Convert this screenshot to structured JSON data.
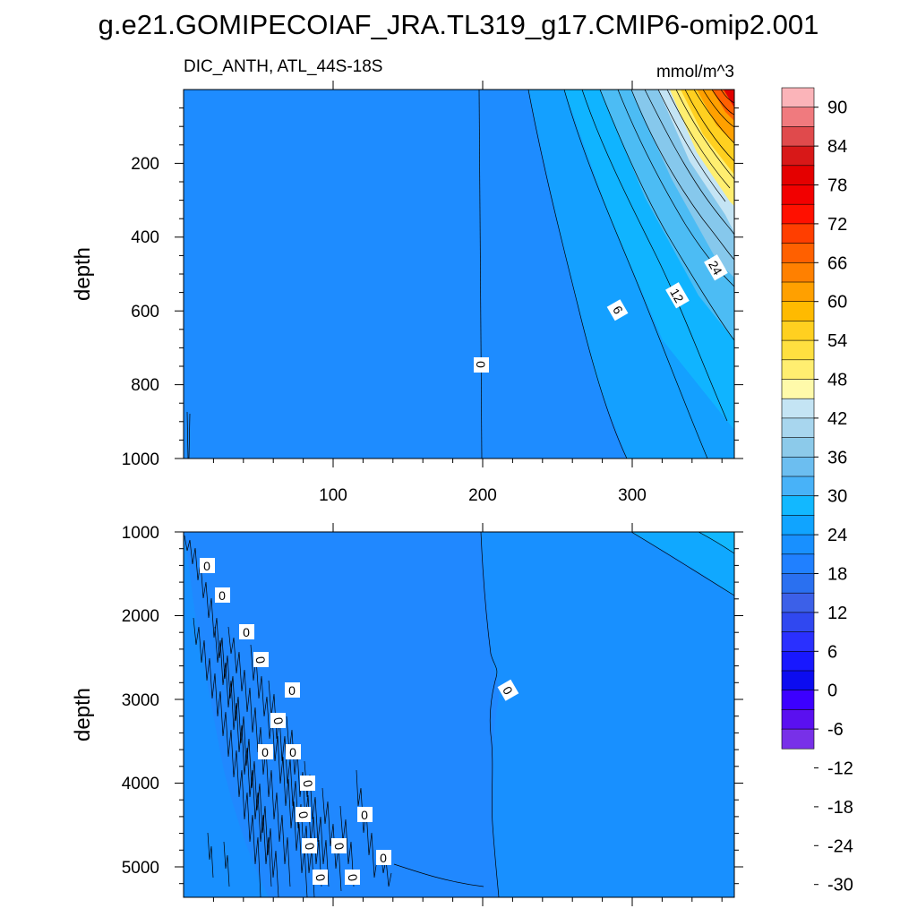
{
  "title": "g.e21.GOMIPECOIAF_JRA.TL319_g17.CMIP6-omip2.001",
  "chart_data": {
    "type": "heatmap",
    "variable": "DIC_ANTH, ATL_44S-18S",
    "units": "mmol/m^3",
    "x": {
      "range": [
        0,
        368
      ],
      "ticks": [
        100,
        200,
        300
      ]
    },
    "panels": [
      {
        "ylabel": "depth",
        "ylim": [
          1000,
          0
        ],
        "yticks": [
          200,
          400,
          600,
          800,
          1000
        ],
        "contour_labels": [
          "0",
          "6",
          "12",
          "24"
        ]
      },
      {
        "ylabel": "depth",
        "ylim": [
          5350,
          1000
        ],
        "yticks": [
          1000,
          2000,
          3000,
          4000,
          5000
        ],
        "contour_labels": [
          "0",
          "0",
          "0",
          "0",
          "0",
          "0",
          "0",
          "0",
          "0",
          "0",
          "0",
          "0",
          "0",
          "0",
          "0",
          "0",
          "0"
        ]
      }
    ],
    "colorbar": {
      "labels": [
        "90",
        "84",
        "78",
        "72",
        "66",
        "60",
        "54",
        "48",
        "42",
        "36",
        "30",
        "24",
        "18",
        "12",
        "6",
        "0",
        "-6",
        "-12",
        "-18",
        "-24",
        "-30"
      ],
      "colors": [
        "#fbb4b9",
        "#f07a7e",
        "#e04a4c",
        "#d81818",
        "#e40000",
        "#f20000",
        "#ff1000",
        "#ff3e00",
        "#ff6000",
        "#ff8000",
        "#ffa000",
        "#ffba00",
        "#ffd020",
        "#ffe040",
        "#ffee70",
        "#fffaaa",
        "#c4e4f4",
        "#a8d6ee",
        "#8ccaea",
        "#6cbef0",
        "#48b2f8",
        "#12b8ff",
        "#10a4ff",
        "#1890ff",
        "#2080ff",
        "#2a70f0",
        "#3c60e8",
        "#3048f0",
        "#2a30ff",
        "#1818ff",
        "#0c0cf0",
        "#3c00ff",
        "#5a10f0",
        "#7830e8"
      ]
    }
  }
}
